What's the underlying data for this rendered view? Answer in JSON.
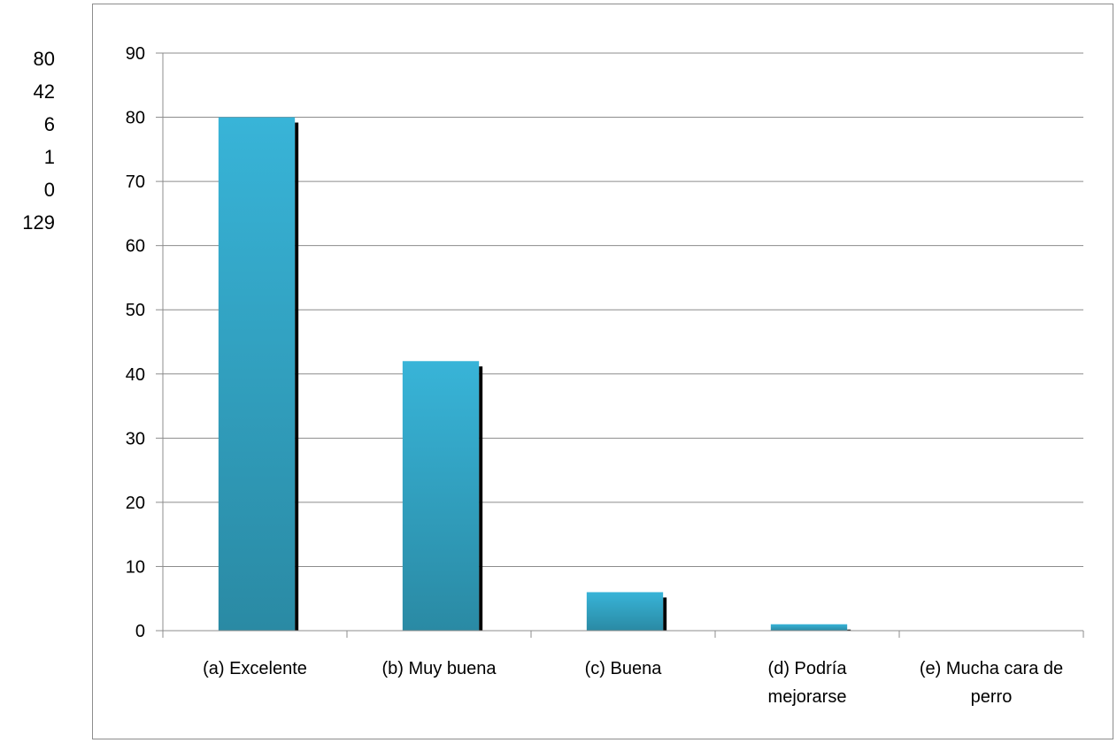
{
  "side_table": {
    "values": [
      "80",
      "42",
      "6",
      "1",
      "0",
      "129"
    ]
  },
  "colors": {
    "bar_top": "#38b4d8",
    "bar_bottom": "#2a8aa4",
    "bar_shadow": "#000000",
    "gridline": "#8c8c8c",
    "axis": "#8c8c8c"
  },
  "chart_data": {
    "type": "bar",
    "categories": [
      [
        "(a) Excelente"
      ],
      [
        "(b) Muy buena"
      ],
      [
        "(c) Buena"
      ],
      [
        "(d) Podría",
        "mejorarse"
      ],
      [
        "(e) Mucha cara de",
        "perro"
      ]
    ],
    "values": [
      80,
      42,
      6,
      1,
      0
    ],
    "ylim": [
      0,
      90
    ],
    "yticks": [
      "0",
      "10",
      "20",
      "30",
      "40",
      "50",
      "60",
      "70",
      "80",
      "90"
    ],
    "grid": true,
    "legend": "none"
  }
}
